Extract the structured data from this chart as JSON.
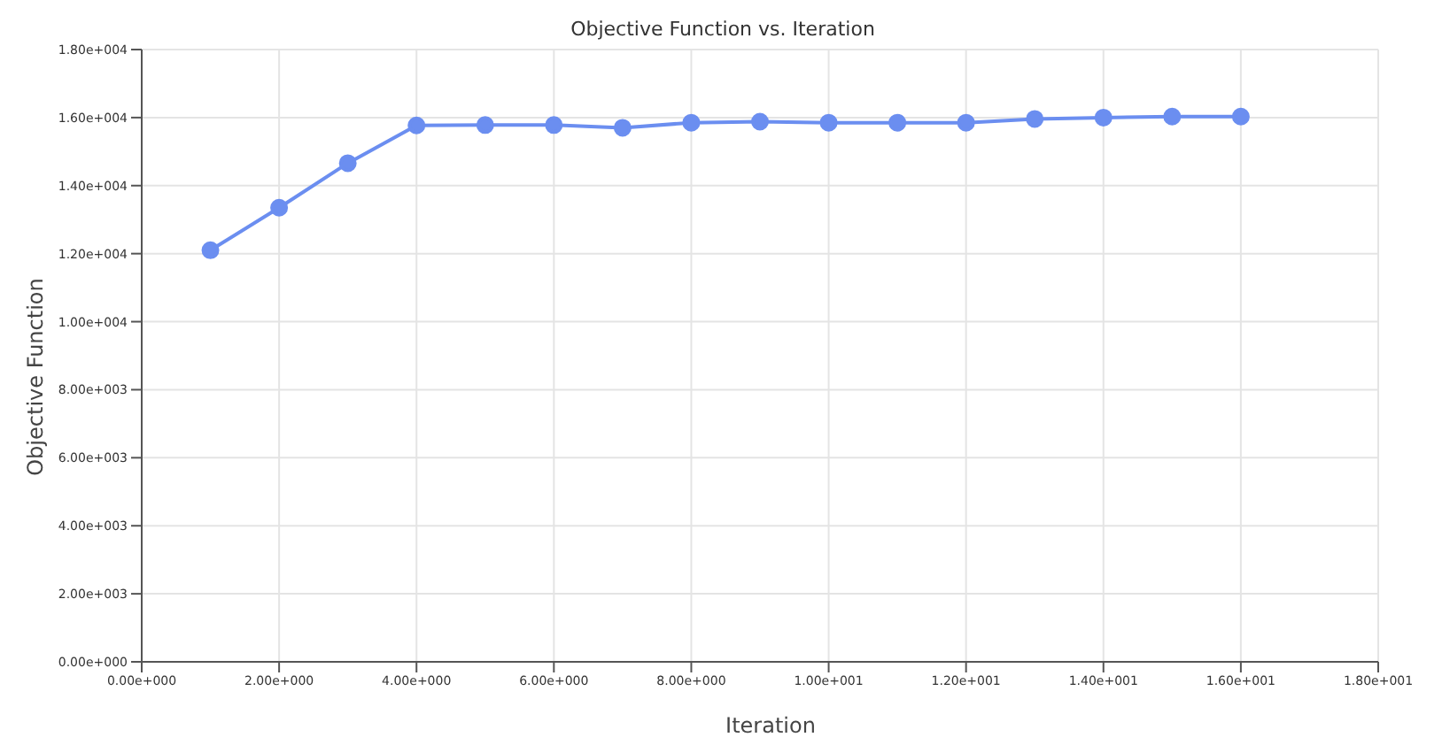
{
  "chart_data": {
    "type": "line",
    "title": "Objective Function vs. Iteration",
    "xlabel": "Iteration",
    "ylabel": "Objective Function",
    "x": [
      1,
      2,
      3,
      4,
      5,
      6,
      7,
      8,
      9,
      10,
      11,
      12,
      13,
      14,
      15,
      16
    ],
    "series": [
      {
        "color": "#6b8ef0",
        "values": [
          12100,
          13350,
          14660,
          15770,
          15780,
          15780,
          15700,
          15850,
          15880,
          15850,
          15850,
          15850,
          15960,
          16000,
          16030,
          16030
        ]
      }
    ],
    "xlim": [
      0,
      18
    ],
    "ylim": [
      0,
      18000
    ],
    "xticks": [
      {
        "value": 0,
        "label": "0.00e+000"
      },
      {
        "value": 2,
        "label": "2.00e+000"
      },
      {
        "value": 4,
        "label": "4.00e+000"
      },
      {
        "value": 6,
        "label": "6.00e+000"
      },
      {
        "value": 8,
        "label": "8.00e+000"
      },
      {
        "value": 10,
        "label": "1.00e+001"
      },
      {
        "value": 12,
        "label": "1.20e+001"
      },
      {
        "value": 14,
        "label": "1.40e+001"
      },
      {
        "value": 16,
        "label": "1.60e+001"
      },
      {
        "value": 18,
        "label": "1.80e+001"
      }
    ],
    "yticks": [
      {
        "value": 0,
        "label": "0.00e+000"
      },
      {
        "value": 2000,
        "label": "2.00e+003"
      },
      {
        "value": 4000,
        "label": "4.00e+003"
      },
      {
        "value": 6000,
        "label": "6.00e+003"
      },
      {
        "value": 8000,
        "label": "8.00e+003"
      },
      {
        "value": 10000,
        "label": "1.00e+004"
      },
      {
        "value": 12000,
        "label": "1.20e+004"
      },
      {
        "value": 14000,
        "label": "1.40e+004"
      },
      {
        "value": 16000,
        "label": "1.60e+004"
      },
      {
        "value": 18000,
        "label": "1.80e+004"
      }
    ],
    "grid": true,
    "marker": "circle",
    "line_style": "solid"
  }
}
